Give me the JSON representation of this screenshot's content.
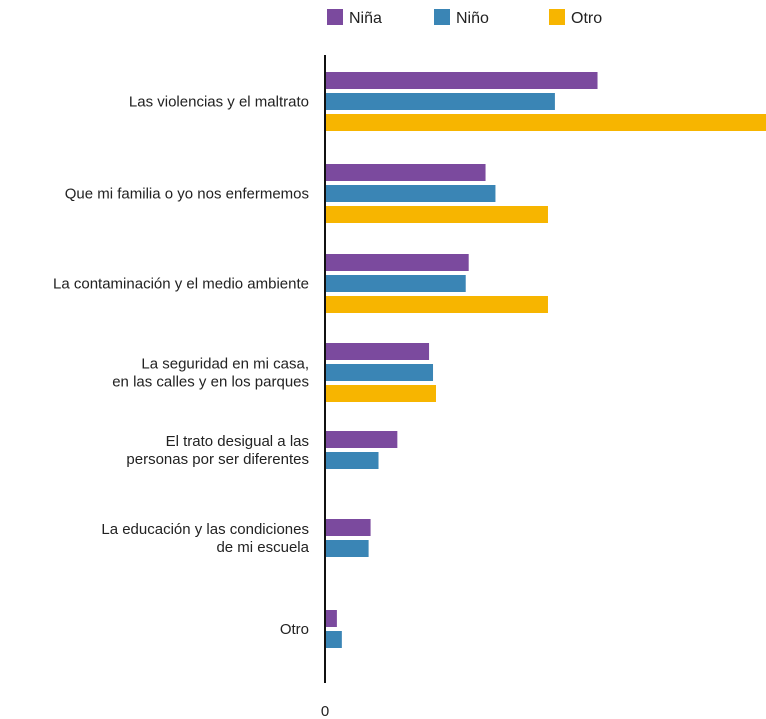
{
  "chart_data": {
    "type": "bar",
    "orientation": "horizontal",
    "categories": [
      [
        "Las violencias y el maltrato"
      ],
      [
        "Que mi familia o yo nos enfermemos"
      ],
      [
        "La contaminación y el medio ambiente"
      ],
      [
        "La seguridad en mi casa,",
        "en las calles y en los parques"
      ],
      [
        "El trato desigual a las",
        "personas por ser diferentes"
      ],
      [
        "La educación y las condiciones",
        "de mi escuela"
      ],
      [
        "Otro"
      ]
    ],
    "series": [
      {
        "name": "Niña",
        "color": "#7B4A9E",
        "values": [
          27.5,
          16.2,
          14.5,
          10.5,
          7.3,
          4.6,
          1.2
        ]
      },
      {
        "name": "Niño",
        "color": "#3A85B5",
        "values": [
          23.2,
          17.2,
          14.2,
          10.9,
          5.4,
          4.4,
          1.7
        ]
      },
      {
        "name": "Otro",
        "color": "#F7B500",
        "values": [
          44.5,
          22.5,
          22.5,
          11.2,
          null,
          null,
          null
        ]
      }
    ],
    "xticks": [
      "0"
    ],
    "xlim": [
      0,
      44.5
    ],
    "legend": "top",
    "grid": false
  }
}
